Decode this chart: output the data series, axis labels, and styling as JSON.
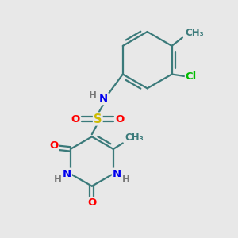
{
  "bg_color": "#e8e8e8",
  "bond_color": "#3a7a7a",
  "bond_width": 1.6,
  "atom_colors": {
    "N": "#0000ee",
    "O": "#ff0000",
    "S": "#ccbb00",
    "Cl": "#00bb00",
    "C": "#3a7a7a",
    "H": "#777777",
    "CH3": "#3a7a7a",
    "Me": "#3a7a7a"
  },
  "font_size": 9.5
}
